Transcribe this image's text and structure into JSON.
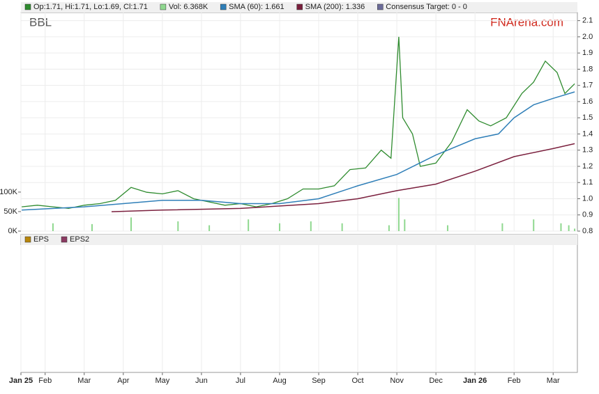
{
  "chart_data": {
    "type": "line",
    "title": "BBL",
    "brand": "FNArena.com",
    "xlim": [
      0.38,
      14.62
    ],
    "xticks": [
      {
        "value": 0.38,
        "label": "Jan 25"
      },
      {
        "value": 1,
        "label": "Feb"
      },
      {
        "value": 2,
        "label": "Mar"
      },
      {
        "value": 3,
        "label": "Apr"
      },
      {
        "value": 4,
        "label": "May"
      },
      {
        "value": 5,
        "label": "Jun"
      },
      {
        "value": 6,
        "label": "Jul"
      },
      {
        "value": 7,
        "label": "Aug"
      },
      {
        "value": 8,
        "label": "Sep"
      },
      {
        "value": 9,
        "label": "Oct"
      },
      {
        "value": 10,
        "label": "Nov"
      },
      {
        "value": 11,
        "label": "Dec"
      },
      {
        "value": 12,
        "label": "Jan 26"
      },
      {
        "value": 13,
        "label": "Feb"
      },
      {
        "value": 14,
        "label": "Mar"
      }
    ],
    "ylim": [
      0.8,
      2.15
    ],
    "yticks": [
      0.8,
      0.9,
      {
        "value": 1,
        "label": "1.0"
      },
      1.1,
      1.2,
      1.3,
      1.4,
      1.5,
      1.6,
      1.7,
      1.8,
      1.9,
      {
        "value": 2,
        "label": "2.0"
      },
      2.1
    ],
    "y2lim": [
      0,
      560
    ],
    "y2ticks": [
      {
        "value": 0,
        "label": "0K"
      },
      {
        "value": 50,
        "label": "50K"
      },
      {
        "value": 100,
        "label": "100K"
      }
    ],
    "grid": true,
    "series": [
      {
        "name": "Op:1.71, Hi:1.71, Lo:1.69, Cl:1.71",
        "color": "#2e8b2e",
        "x": [
          0.4,
          0.8,
          1.2,
          1.6,
          2.0,
          2.4,
          2.8,
          3.2,
          3.6,
          4.0,
          4.4,
          4.8,
          5.2,
          5.6,
          6.0,
          6.4,
          6.8,
          7.2,
          7.6,
          8.0,
          8.4,
          8.8,
          9.2,
          9.6,
          9.85,
          10.05,
          10.15,
          10.4,
          10.6,
          11.0,
          11.4,
          11.8,
          12.1,
          12.4,
          12.8,
          13.2,
          13.5,
          13.8,
          14.1,
          14.3,
          14.55
        ],
        "values": [
          0.95,
          0.96,
          0.95,
          0.94,
          0.96,
          0.97,
          0.99,
          1.07,
          1.04,
          1.03,
          1.05,
          1.0,
          0.98,
          0.96,
          0.97,
          0.95,
          0.97,
          1.0,
          1.06,
          1.06,
          1.08,
          1.18,
          1.19,
          1.3,
          1.25,
          2.0,
          1.5,
          1.4,
          1.2,
          1.22,
          1.35,
          1.55,
          1.48,
          1.45,
          1.5,
          1.65,
          1.72,
          1.85,
          1.78,
          1.65,
          1.71
        ]
      },
      {
        "name": "Vol: 6.368K",
        "color": "#8fd88f",
        "axis": "y2",
        "kind": "volume",
        "x": [
          1.2,
          2.2,
          3.2,
          4.4,
          5.2,
          6.2,
          7.0,
          7.8,
          8.6,
          9.8,
          10.05,
          10.2,
          11.3,
          12.7,
          13.5,
          14.2,
          14.4,
          14.55
        ],
        "values": [
          20,
          18,
          35,
          25,
          15,
          30,
          20,
          25,
          20,
          15,
          85,
          30,
          15,
          20,
          30,
          20,
          15,
          6.368
        ]
      },
      {
        "name": "SMA (60): 1.661",
        "color": "#2f7fb8",
        "x": [
          0.4,
          2,
          3,
          4,
          5,
          6,
          7,
          8,
          9,
          10,
          11,
          12,
          12.6,
          13,
          13.5,
          14,
          14.55
        ],
        "values": [
          0.93,
          0.95,
          0.97,
          0.99,
          0.99,
          0.97,
          0.97,
          1.0,
          1.08,
          1.15,
          1.27,
          1.37,
          1.4,
          1.5,
          1.58,
          1.62,
          1.66
        ]
      },
      {
        "name": "SMA (200): 1.336",
        "color": "#7a1f3d",
        "x": [
          2.7,
          4,
          6,
          8,
          9,
          10,
          11,
          12,
          13,
          14,
          14.55
        ],
        "values": [
          0.92,
          0.93,
          0.94,
          0.97,
          1.0,
          1.05,
          1.09,
          1.17,
          1.26,
          1.31,
          1.34
        ]
      }
    ],
    "legend_extra": [
      {
        "name": "Consensus Target: 0 - 0",
        "color": "#6b6b99"
      }
    ],
    "lower_legend": [
      {
        "name": "EPS",
        "color": "#b8860b"
      },
      {
        "name": "EPS2",
        "color": "#8b3a62"
      }
    ]
  }
}
